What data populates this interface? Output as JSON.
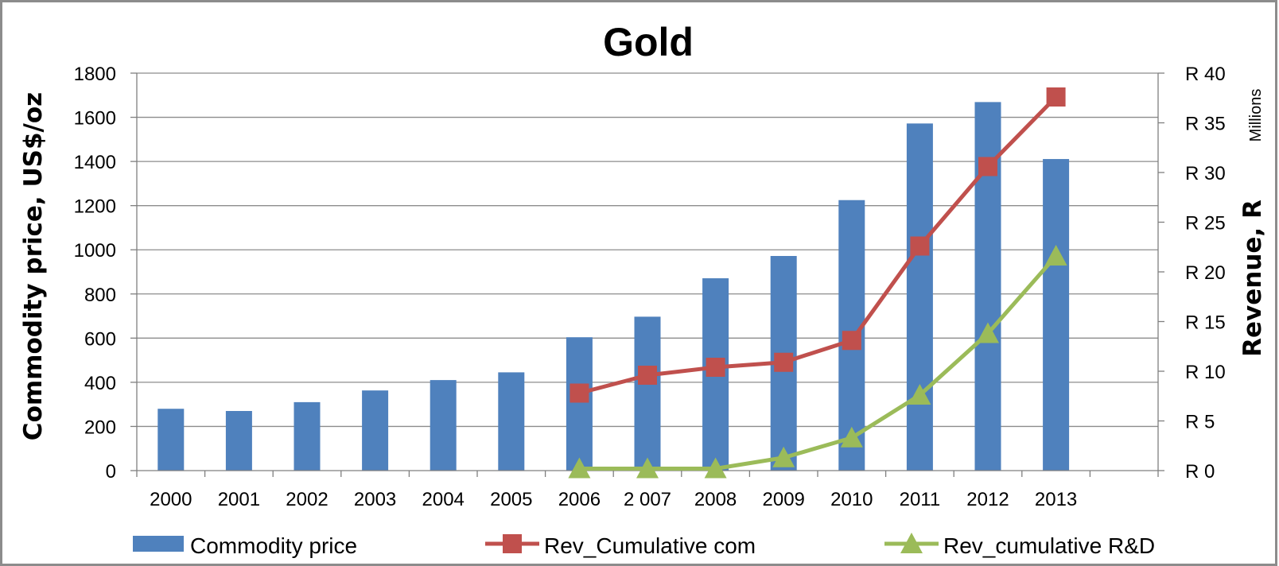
{
  "chart_data": {
    "type": "bar",
    "title": "Gold",
    "categories": [
      "2000",
      "2001",
      "2002",
      "2003",
      "2004",
      "2005",
      "2006",
      "2 007",
      "2008",
      "2009",
      "2010",
      "2011",
      "2012",
      "2013"
    ],
    "ylabel": "Commodity price, US$/oz",
    "y2label": "Revenue, R",
    "y2_units_label": "Millions",
    "ylim": [
      0,
      1800
    ],
    "y2lim": [
      0,
      40
    ],
    "y_ticks": [
      "0",
      "200",
      "400",
      "600",
      "800",
      "1000",
      "1200",
      "1400",
      "1600",
      "1800"
    ],
    "y2_ticks": [
      "R 0",
      "R 5",
      "R 10",
      "R 15",
      "R 20",
      "R 25",
      "R 30",
      "R 35",
      "R 40"
    ],
    "grid": true,
    "legend_position": "bottom",
    "series": [
      {
        "name": "Commodity price",
        "type": "bar",
        "axis": "left",
        "color": "#4f81bd",
        "values": [
          280,
          270,
          310,
          363,
          410,
          445,
          604,
          697,
          871,
          972,
          1225,
          1572,
          1669,
          1411
        ]
      },
      {
        "name": "Rev_Cumulative com",
        "type": "line",
        "axis": "right",
        "marker": "square",
        "color": "#c0504d",
        "values": [
          null,
          null,
          null,
          null,
          null,
          null,
          7.8,
          9.6,
          10.4,
          10.9,
          13.1,
          22.6,
          30.6,
          37.6
        ]
      },
      {
        "name": "Rev_cumulative R&D",
        "type": "line",
        "axis": "right",
        "marker": "triangle",
        "color": "#9bbb59",
        "values": [
          null,
          null,
          null,
          null,
          null,
          null,
          0.2,
          0.2,
          0.2,
          1.3,
          3.3,
          7.6,
          13.8,
          21.6
        ]
      }
    ]
  }
}
